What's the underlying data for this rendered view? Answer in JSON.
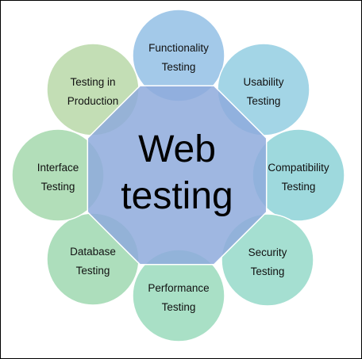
{
  "center": {
    "line1": "Web",
    "line2": "testing",
    "color": "#8eaadc"
  },
  "nodes": [
    {
      "id": "functionality",
      "line1": "Functionality",
      "line2": "Testing",
      "color": "#8cbbe3"
    },
    {
      "id": "usability",
      "line1": "Usability",
      "line2": "Testing",
      "color": "#8ccbe0"
    },
    {
      "id": "compatibility",
      "line1": "Compatibility",
      "line2": "Testing",
      "color": "#86d0d4"
    },
    {
      "id": "security",
      "line1": "Security",
      "line2": "Testing",
      "color": "#8ed7c6"
    },
    {
      "id": "performance",
      "line1": "Performance",
      "line2": "Testing",
      "color": "#93d8b8"
    },
    {
      "id": "database",
      "line1": "Database",
      "line2": "Testing",
      "color": "#98d6ab"
    },
    {
      "id": "interface",
      "line1": "Interface",
      "line2": "Testing",
      "color": "#9fd6a8"
    },
    {
      "id": "production",
      "line1": "Testing in",
      "line2": "Production",
      "color": "#b4d6a2"
    }
  ]
}
